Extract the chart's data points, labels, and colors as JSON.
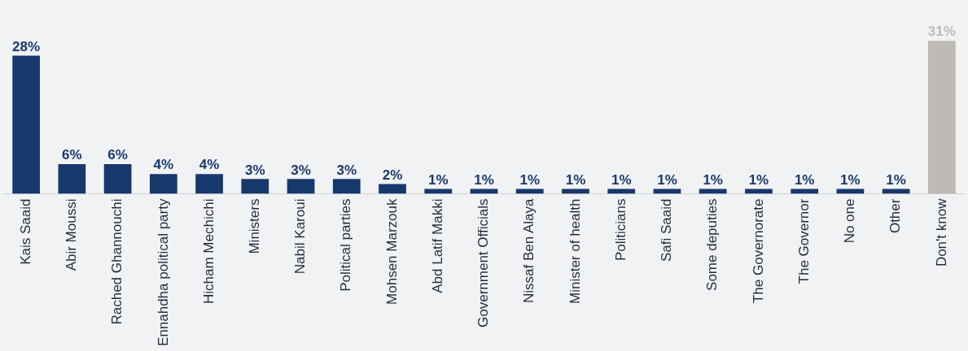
{
  "chart_data": {
    "type": "bar",
    "categories": [
      "Kais Saaid",
      "Abir Moussi",
      "Rached Ghannouchi",
      "Ennahdha political party",
      "Hicham Mechichi",
      "Ministers",
      "Nabil Karoui",
      "Political parties",
      "Mohsen Marzouk",
      "Abd Latif Makki",
      "Government Officials",
      "Nissaf Ben Alaya",
      "Minister of health",
      "Politicians",
      "Safi Saaid",
      "Some deputies",
      "The Governorate",
      "The Governor",
      "No one",
      "Other",
      "Don't know"
    ],
    "values": [
      28,
      6,
      6,
      4,
      4,
      3,
      3,
      3,
      2,
      1,
      1,
      1,
      1,
      1,
      1,
      1,
      1,
      1,
      1,
      1,
      31
    ],
    "colors": [
      "#17386b",
      "#17386b",
      "#17386b",
      "#17386b",
      "#17386b",
      "#17386b",
      "#17386b",
      "#17386b",
      "#17386b",
      "#17386b",
      "#17386b",
      "#17386b",
      "#17386b",
      "#17386b",
      "#17386b",
      "#17386b",
      "#17386b",
      "#17386b",
      "#17386b",
      "#17386b",
      "#bdbab5"
    ],
    "value_labels": [
      "28%",
      "6%",
      "6%",
      "4%",
      "4%",
      "3%",
      "3%",
      "3%",
      "2%",
      "1%",
      "1%",
      "1%",
      "1%",
      "1%",
      "1%",
      "1%",
      "1%",
      "1%",
      "1%",
      "1%",
      "31%"
    ],
    "grid": false,
    "legend": false
  }
}
